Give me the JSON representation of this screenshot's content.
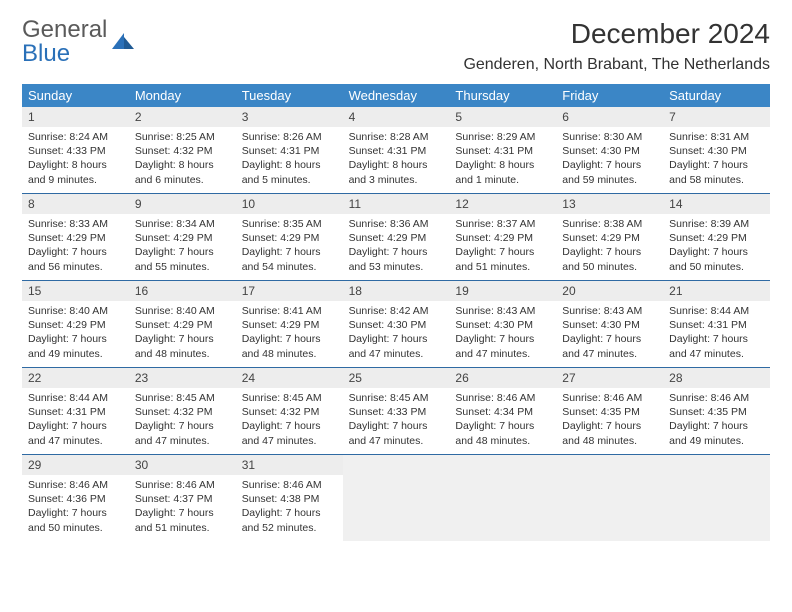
{
  "brand": {
    "part1": "General",
    "part2": "Blue"
  },
  "title": "December 2024",
  "location": "Genderen, North Brabant, The Netherlands",
  "colors": {
    "header_bg": "#3b86c6",
    "header_text": "#ffffff",
    "daynum_bg": "#ededed",
    "week_border": "#2f6aa3",
    "brand_gray": "#5a5a5a",
    "brand_blue": "#2a70b8",
    "page_bg": "#ffffff"
  },
  "day_names": [
    "Sunday",
    "Monday",
    "Tuesday",
    "Wednesday",
    "Thursday",
    "Friday",
    "Saturday"
  ],
  "weeks": [
    [
      {
        "day": "1",
        "sunrise": "Sunrise: 8:24 AM",
        "sunset": "Sunset: 4:33 PM",
        "dl1": "Daylight: 8 hours",
        "dl2": "and 9 minutes."
      },
      {
        "day": "2",
        "sunrise": "Sunrise: 8:25 AM",
        "sunset": "Sunset: 4:32 PM",
        "dl1": "Daylight: 8 hours",
        "dl2": "and 6 minutes."
      },
      {
        "day": "3",
        "sunrise": "Sunrise: 8:26 AM",
        "sunset": "Sunset: 4:31 PM",
        "dl1": "Daylight: 8 hours",
        "dl2": "and 5 minutes."
      },
      {
        "day": "4",
        "sunrise": "Sunrise: 8:28 AM",
        "sunset": "Sunset: 4:31 PM",
        "dl1": "Daylight: 8 hours",
        "dl2": "and 3 minutes."
      },
      {
        "day": "5",
        "sunrise": "Sunrise: 8:29 AM",
        "sunset": "Sunset: 4:31 PM",
        "dl1": "Daylight: 8 hours",
        "dl2": "and 1 minute."
      },
      {
        "day": "6",
        "sunrise": "Sunrise: 8:30 AM",
        "sunset": "Sunset: 4:30 PM",
        "dl1": "Daylight: 7 hours",
        "dl2": "and 59 minutes."
      },
      {
        "day": "7",
        "sunrise": "Sunrise: 8:31 AM",
        "sunset": "Sunset: 4:30 PM",
        "dl1": "Daylight: 7 hours",
        "dl2": "and 58 minutes."
      }
    ],
    [
      {
        "day": "8",
        "sunrise": "Sunrise: 8:33 AM",
        "sunset": "Sunset: 4:29 PM",
        "dl1": "Daylight: 7 hours",
        "dl2": "and 56 minutes."
      },
      {
        "day": "9",
        "sunrise": "Sunrise: 8:34 AM",
        "sunset": "Sunset: 4:29 PM",
        "dl1": "Daylight: 7 hours",
        "dl2": "and 55 minutes."
      },
      {
        "day": "10",
        "sunrise": "Sunrise: 8:35 AM",
        "sunset": "Sunset: 4:29 PM",
        "dl1": "Daylight: 7 hours",
        "dl2": "and 54 minutes."
      },
      {
        "day": "11",
        "sunrise": "Sunrise: 8:36 AM",
        "sunset": "Sunset: 4:29 PM",
        "dl1": "Daylight: 7 hours",
        "dl2": "and 53 minutes."
      },
      {
        "day": "12",
        "sunrise": "Sunrise: 8:37 AM",
        "sunset": "Sunset: 4:29 PM",
        "dl1": "Daylight: 7 hours",
        "dl2": "and 51 minutes."
      },
      {
        "day": "13",
        "sunrise": "Sunrise: 8:38 AM",
        "sunset": "Sunset: 4:29 PM",
        "dl1": "Daylight: 7 hours",
        "dl2": "and 50 minutes."
      },
      {
        "day": "14",
        "sunrise": "Sunrise: 8:39 AM",
        "sunset": "Sunset: 4:29 PM",
        "dl1": "Daylight: 7 hours",
        "dl2": "and 50 minutes."
      }
    ],
    [
      {
        "day": "15",
        "sunrise": "Sunrise: 8:40 AM",
        "sunset": "Sunset: 4:29 PM",
        "dl1": "Daylight: 7 hours",
        "dl2": "and 49 minutes."
      },
      {
        "day": "16",
        "sunrise": "Sunrise: 8:40 AM",
        "sunset": "Sunset: 4:29 PM",
        "dl1": "Daylight: 7 hours",
        "dl2": "and 48 minutes."
      },
      {
        "day": "17",
        "sunrise": "Sunrise: 8:41 AM",
        "sunset": "Sunset: 4:29 PM",
        "dl1": "Daylight: 7 hours",
        "dl2": "and 48 minutes."
      },
      {
        "day": "18",
        "sunrise": "Sunrise: 8:42 AM",
        "sunset": "Sunset: 4:30 PM",
        "dl1": "Daylight: 7 hours",
        "dl2": "and 47 minutes."
      },
      {
        "day": "19",
        "sunrise": "Sunrise: 8:43 AM",
        "sunset": "Sunset: 4:30 PM",
        "dl1": "Daylight: 7 hours",
        "dl2": "and 47 minutes."
      },
      {
        "day": "20",
        "sunrise": "Sunrise: 8:43 AM",
        "sunset": "Sunset: 4:30 PM",
        "dl1": "Daylight: 7 hours",
        "dl2": "and 47 minutes."
      },
      {
        "day": "21",
        "sunrise": "Sunrise: 8:44 AM",
        "sunset": "Sunset: 4:31 PM",
        "dl1": "Daylight: 7 hours",
        "dl2": "and 47 minutes."
      }
    ],
    [
      {
        "day": "22",
        "sunrise": "Sunrise: 8:44 AM",
        "sunset": "Sunset: 4:31 PM",
        "dl1": "Daylight: 7 hours",
        "dl2": "and 47 minutes."
      },
      {
        "day": "23",
        "sunrise": "Sunrise: 8:45 AM",
        "sunset": "Sunset: 4:32 PM",
        "dl1": "Daylight: 7 hours",
        "dl2": "and 47 minutes."
      },
      {
        "day": "24",
        "sunrise": "Sunrise: 8:45 AM",
        "sunset": "Sunset: 4:32 PM",
        "dl1": "Daylight: 7 hours",
        "dl2": "and 47 minutes."
      },
      {
        "day": "25",
        "sunrise": "Sunrise: 8:45 AM",
        "sunset": "Sunset: 4:33 PM",
        "dl1": "Daylight: 7 hours",
        "dl2": "and 47 minutes."
      },
      {
        "day": "26",
        "sunrise": "Sunrise: 8:46 AM",
        "sunset": "Sunset: 4:34 PM",
        "dl1": "Daylight: 7 hours",
        "dl2": "and 48 minutes."
      },
      {
        "day": "27",
        "sunrise": "Sunrise: 8:46 AM",
        "sunset": "Sunset: 4:35 PM",
        "dl1": "Daylight: 7 hours",
        "dl2": "and 48 minutes."
      },
      {
        "day": "28",
        "sunrise": "Sunrise: 8:46 AM",
        "sunset": "Sunset: 4:35 PM",
        "dl1": "Daylight: 7 hours",
        "dl2": "and 49 minutes."
      }
    ],
    [
      {
        "day": "29",
        "sunrise": "Sunrise: 8:46 AM",
        "sunset": "Sunset: 4:36 PM",
        "dl1": "Daylight: 7 hours",
        "dl2": "and 50 minutes."
      },
      {
        "day": "30",
        "sunrise": "Sunrise: 8:46 AM",
        "sunset": "Sunset: 4:37 PM",
        "dl1": "Daylight: 7 hours",
        "dl2": "and 51 minutes."
      },
      {
        "day": "31",
        "sunrise": "Sunrise: 8:46 AM",
        "sunset": "Sunset: 4:38 PM",
        "dl1": "Daylight: 7 hours",
        "dl2": "and 52 minutes."
      },
      {
        "empty": true
      },
      {
        "empty": true
      },
      {
        "empty": true
      },
      {
        "empty": true
      }
    ]
  ]
}
